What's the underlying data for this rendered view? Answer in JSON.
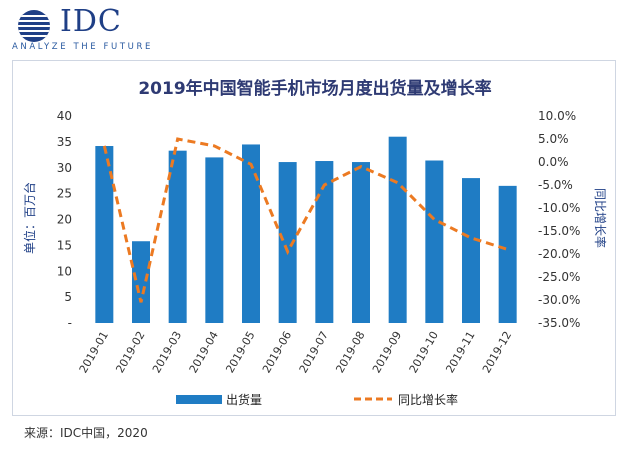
{
  "brand": {
    "name": "IDC",
    "tagline": "ANALYZE THE FUTURE"
  },
  "chart_data": {
    "type": "bar",
    "title": "2019年中国智能手机市场月度出货量及增长率",
    "categories": [
      "2019-01",
      "2019-02",
      "2019-03",
      "2019-04",
      "2019-05",
      "2019-06",
      "2019-07",
      "2019-08",
      "2019-09",
      "2019-10",
      "2019-11",
      "2019-12"
    ],
    "series": [
      {
        "name": "出货量",
        "type": "bar",
        "axis": "left",
        "color": "#1f7cc4",
        "values": [
          34.2,
          15.8,
          33.3,
          32.0,
          34.5,
          31.1,
          31.3,
          31.1,
          36.0,
          31.4,
          28.0,
          26.5
        ]
      },
      {
        "name": "同比增长率",
        "type": "line",
        "axis": "right",
        "color": "#ec7a22",
        "dash": true,
        "values": [
          3.5,
          -30.5,
          5.0,
          3.5,
          -0.5,
          -19.5,
          -5.0,
          -1.0,
          -4.5,
          -12.5,
          -16.5,
          -19.0
        ]
      }
    ],
    "ylabel": "单位：百万台",
    "y2label": "同比增长率",
    "ylim": [
      0,
      40
    ],
    "y2lim": [
      -35,
      10
    ],
    "yticks": [
      "-",
      "5",
      "10",
      "15",
      "20",
      "25",
      "30",
      "35",
      "40"
    ],
    "y2ticks": [
      "-35.0%",
      "-30.0%",
      "-25.0%",
      "-20.0%",
      "-15.0%",
      "-10.0%",
      "-5.0%",
      "0.0%",
      "5.0%",
      "10.0%"
    ],
    "legend": [
      "出货量",
      "同比增长率"
    ],
    "legend_position": "bottom"
  },
  "source": "来源：IDC中国，2020"
}
